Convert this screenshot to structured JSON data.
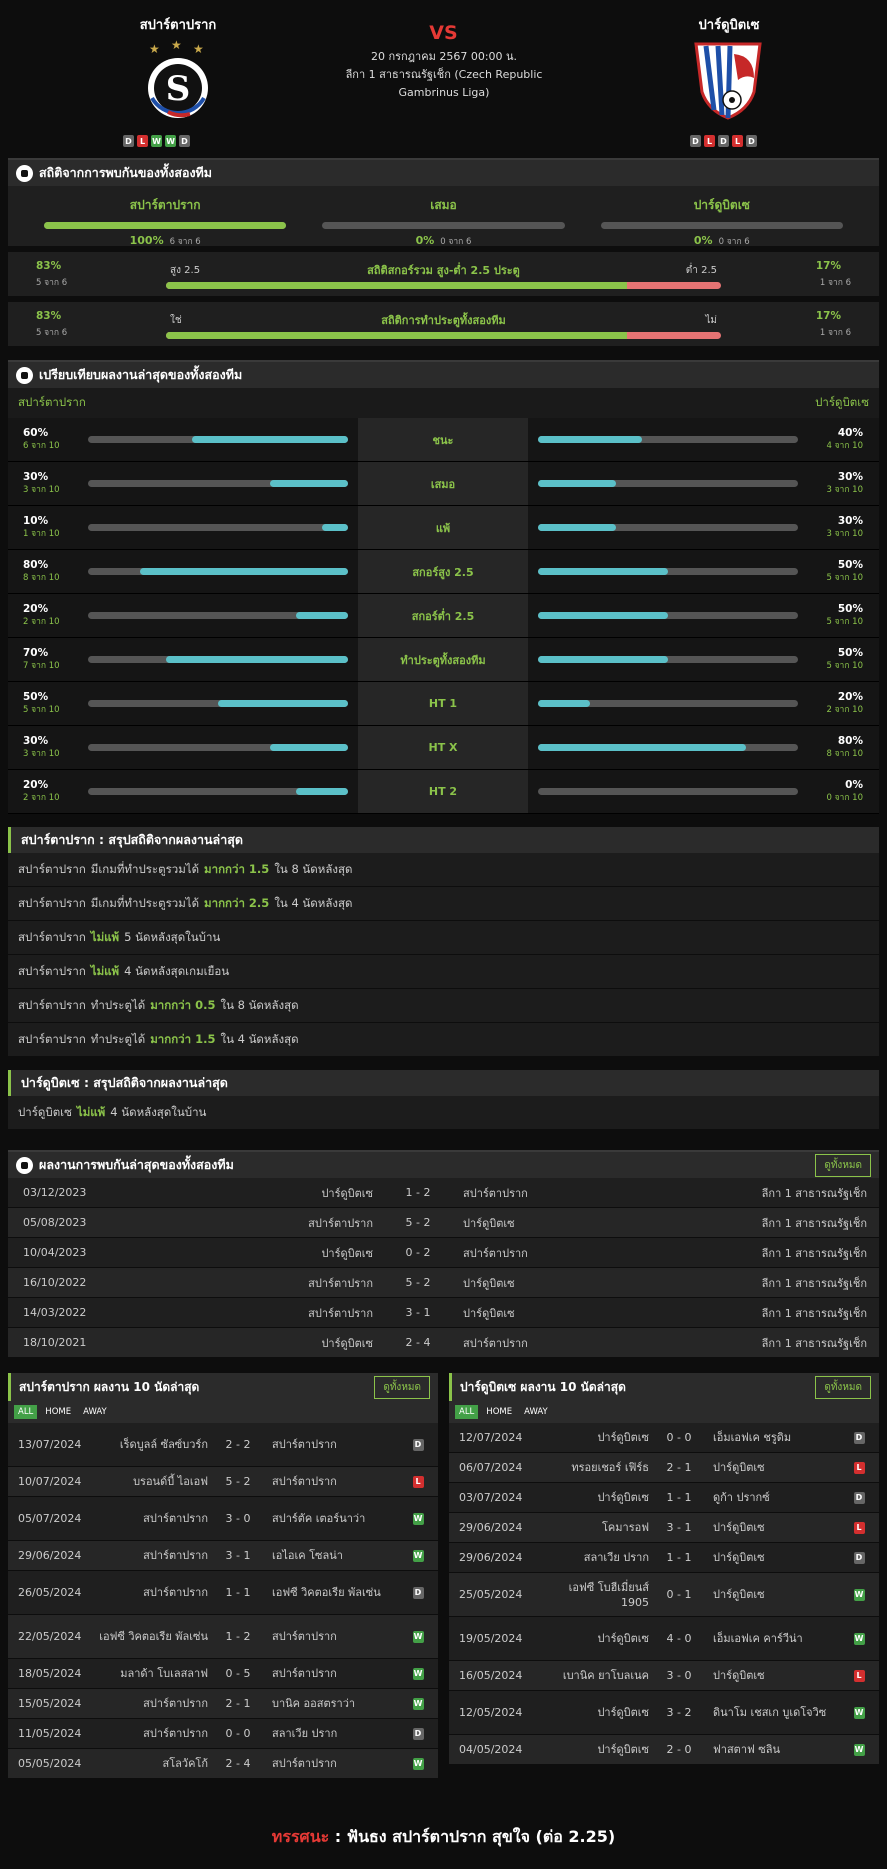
{
  "home_team": "สปาร์ตาปราก",
  "away_team": "ปาร์ดูบิตเซ",
  "vs": "VS",
  "match_date": "20 กรกฎาคม 2567 00:00 น.",
  "league": "ลีกา 1 สาธารณรัฐเช็ก (Czech Republic Gambrinus Liga)",
  "home_form": [
    "D",
    "L",
    "W",
    "W",
    "D"
  ],
  "away_form": [
    "D",
    "L",
    "D",
    "L",
    "D"
  ],
  "h2h": {
    "title": "สถิติจากการพบกันของทั้งสองทีม",
    "home": {
      "name": "สปาร์ตาปราก",
      "pct": "100%",
      "of": "6 จาก 6",
      "fill": 1.0
    },
    "draw": {
      "name": "เสมอ",
      "pct": "0%",
      "of": "0 จาก 6",
      "fill": 0.0
    },
    "away": {
      "name": "ปาร์ดูบิตเซ",
      "pct": "0%",
      "of": "0 จาก 6",
      "fill": 0.0
    },
    "ou": {
      "lp": "83%",
      "lo": "5 จาก 6",
      "ll": "สูง 2.5",
      "center": "สถิติสกอร์รวม สูง-ต่ำ 2.5 ประตู",
      "rl": "ต่ำ 2.5",
      "rp": "17%",
      "ro": "1 จาก 6",
      "fill": 0.83
    },
    "btts": {
      "lp": "83%",
      "lo": "5 จาก 6",
      "ll": "ใช่",
      "center": "สถิติการทำประตูทั้งสองทีม",
      "rl": "ไม่",
      "rp": "17%",
      "ro": "1 จาก 6",
      "fill": 0.83
    }
  },
  "compare": {
    "title": "เปรียบเทียบผลงานล่าสุดของทั้งสองทีม",
    "home": "สปาร์ตาปราก",
    "away": "ปาร์ดูบิตเซ",
    "rows": [
      {
        "label": "ชนะ",
        "hp": "60%",
        "ho": "6 จาก 10",
        "hv": 0.6,
        "ap": "40%",
        "ao": "4 จาก 10",
        "av": 0.4
      },
      {
        "label": "เสมอ",
        "hp": "30%",
        "ho": "3 จาก 10",
        "hv": 0.3,
        "ap": "30%",
        "ao": "3 จาก 10",
        "av": 0.3
      },
      {
        "label": "แพ้",
        "hp": "10%",
        "ho": "1 จาก 10",
        "hv": 0.1,
        "ap": "30%",
        "ao": "3 จาก 10",
        "av": 0.3
      },
      {
        "label": "สกอร์สูง 2.5",
        "hp": "80%",
        "ho": "8 จาก 10",
        "hv": 0.8,
        "ap": "50%",
        "ao": "5 จาก 10",
        "av": 0.5
      },
      {
        "label": "สกอร์ต่ำ 2.5",
        "hp": "20%",
        "ho": "2 จาก 10",
        "hv": 0.2,
        "ap": "50%",
        "ao": "5 จาก 10",
        "av": 0.5
      },
      {
        "label": "ทำประตูทั้งสองทีม",
        "hp": "70%",
        "ho": "7 จาก 10",
        "hv": 0.7,
        "ap": "50%",
        "ao": "5 จาก 10",
        "av": 0.5
      },
      {
        "label": "HT 1",
        "hp": "50%",
        "ho": "5 จาก 10",
        "hv": 0.5,
        "ap": "20%",
        "ao": "2 จาก 10",
        "av": 0.2
      },
      {
        "label": "HT X",
        "hp": "30%",
        "ho": "3 จาก 10",
        "hv": 0.3,
        "ap": "80%",
        "ao": "8 จาก 10",
        "av": 0.8
      },
      {
        "label": "HT 2",
        "hp": "20%",
        "ho": "2 จาก 10",
        "hv": 0.2,
        "ap": "0%",
        "ao": "0 จาก 10",
        "av": 0.0
      }
    ]
  },
  "home_summary": {
    "title": "สปาร์ตาปราก : สรุปสถิติจากผลงานล่าสุด",
    "rows": [
      [
        "สปาร์ตาปราก",
        "มีเกมที่ทำประตูรวมได้",
        "มากกว่า 1.5",
        "ใน 8 นัดหลังสุด"
      ],
      [
        "สปาร์ตาปราก",
        "มีเกมที่ทำประตูรวมได้",
        "มากกว่า 2.5",
        "ใน 4 นัดหลังสุด"
      ],
      [
        "สปาร์ตาปราก",
        "",
        "ไม่แพ้",
        "5 นัดหลังสุดในบ้าน"
      ],
      [
        "สปาร์ตาปราก",
        "",
        "ไม่แพ้",
        "4 นัดหลังสุดเกมเยือน"
      ],
      [
        "สปาร์ตาปราก",
        "ทำประตูได้",
        "มากกว่า 0.5",
        "ใน 8 นัดหลังสุด"
      ],
      [
        "สปาร์ตาปราก",
        "ทำประตูได้",
        "มากกว่า 1.5",
        "ใน 4 นัดหลังสุด"
      ]
    ]
  },
  "away_summary": {
    "title": "ปาร์ดูบิตเซ : สรุปสถิติจากผลงานล่าสุด",
    "rows": [
      [
        "ปาร์ดูบิตเซ",
        "",
        "ไม่แพ้",
        "4 นัดหลังสุดในบ้าน"
      ]
    ]
  },
  "h2h_list": {
    "title": "ผลงานการพบกันล่าสุดของทั้งสองทีม",
    "view_all": "ดูทั้งหมด",
    "rows": [
      [
        "03/12/2023",
        "ปาร์ดูบิตเซ",
        "1 - 2",
        "สปาร์ตาปราก",
        "ลีกา 1 สาธารณรัฐเช็ก"
      ],
      [
        "05/08/2023",
        "สปาร์ตาปราก",
        "5 - 2",
        "ปาร์ดูบิตเซ",
        "ลีกา 1 สาธารณรัฐเช็ก"
      ],
      [
        "10/04/2023",
        "ปาร์ดูบิตเซ",
        "0 - 2",
        "สปาร์ตาปราก",
        "ลีกา 1 สาธารณรัฐเช็ก"
      ],
      [
        "16/10/2022",
        "สปาร์ตาปราก",
        "5 - 2",
        "ปาร์ดูบิตเซ",
        "ลีกา 1 สาธารณรัฐเช็ก"
      ],
      [
        "14/03/2022",
        "สปาร์ตาปราก",
        "3 - 1",
        "ปาร์ดูบิตเซ",
        "ลีกา 1 สาธารณรัฐเช็ก"
      ],
      [
        "18/10/2021",
        "ปาร์ดูบิตเซ",
        "2 - 4",
        "สปาร์ตาปราก",
        "ลีกา 1 สาธารณรัฐเช็ก"
      ]
    ]
  },
  "filters": [
    "ALL",
    "HOME",
    "AWAY"
  ],
  "home_last": {
    "title": "สปาร์ตาปราก ผลงาน 10 นัดล่าสุด",
    "view_all": "ดูทั้งหมด",
    "rows": [
      [
        "13/07/2024",
        "เร็ดบูลล์ ซัลซ์บวร์ก",
        "2 - 2",
        "สปาร์ตาปราก",
        "D"
      ],
      [
        "10/07/2024",
        "บรอนด์บี้ ไอเอฟ",
        "5 - 2",
        "สปาร์ตาปราก",
        "L"
      ],
      [
        "05/07/2024",
        "สปาร์ตาปราก",
        "3 - 0",
        "สปาร์ตัค เตอร์นาว่า",
        "W"
      ],
      [
        "29/06/2024",
        "สปาร์ตาปราก",
        "3 - 1",
        "เอไอเค โซลน่า",
        "W"
      ],
      [
        "26/05/2024",
        "สปาร์ตาปราก",
        "1 - 1",
        "เอฟซี วิคตอเรีย พัลเซ่น",
        "D"
      ],
      [
        "22/05/2024",
        "เอฟซี วิคตอเรีย พัลเซ่น",
        "1 - 2",
        "สปาร์ตาปราก",
        "W"
      ],
      [
        "18/05/2024",
        "มลาด้า โบเลสลาฟ",
        "0 - 5",
        "สปาร์ตาปราก",
        "W"
      ],
      [
        "15/05/2024",
        "สปาร์ตาปราก",
        "2 - 1",
        "บานิค ออสตราว่า",
        "W"
      ],
      [
        "11/05/2024",
        "สปาร์ตาปราก",
        "0 - 0",
        "สลาเวีย ปราก",
        "D"
      ],
      [
        "05/05/2024",
        "สโลวัคโก้",
        "2 - 4",
        "สปาร์ตาปราก",
        "W"
      ]
    ]
  },
  "away_last": {
    "title": "ปาร์ดูบิตเซ ผลงาน 10 นัดล่าสุด",
    "view_all": "ดูทั้งหมด",
    "rows": [
      [
        "12/07/2024",
        "ปาร์ดูบิตเซ",
        "0 - 0",
        "เอ็มเอฟเค ชรูดิม",
        "D"
      ],
      [
        "06/07/2024",
        "ทรอยเชอร์ เฟิร์ธ",
        "2 - 1",
        "ปาร์ดูบิตเซ",
        "L"
      ],
      [
        "03/07/2024",
        "ปาร์ดูบิตเซ",
        "1 - 1",
        "ดูก้า ปรากซ์",
        "D"
      ],
      [
        "29/06/2024",
        "โคมารอฟ",
        "3 - 1",
        "ปาร์ดูบิตเซ",
        "L"
      ],
      [
        "29/06/2024",
        "สลาเวีย ปราก",
        "1 - 1",
        "ปาร์ดูบิตเซ",
        "D"
      ],
      [
        "25/05/2024",
        "เอฟซี โบฮีเมี่ยนส์ 1905",
        "0 - 1",
        "ปาร์ดูบิตเซ",
        "W"
      ],
      [
        "19/05/2024",
        "ปาร์ดูบิตเซ",
        "4 - 0",
        "เอ็มเอฟเค คาร์วีน่า",
        "W"
      ],
      [
        "16/05/2024",
        "เบานิค ยาโบลเนค",
        "3 - 0",
        "ปาร์ดูบิตเซ",
        "L"
      ],
      [
        "12/05/2024",
        "ปาร์ดูบิตเซ",
        "3 - 2",
        "ดินาโม เชสเก บูเดโจวิซ",
        "W"
      ],
      [
        "04/05/2024",
        "ปาร์ดูบิตเซ",
        "2 - 0",
        "ฟาสตาฟ ซลิน",
        "W"
      ]
    ]
  },
  "tip": {
    "label": "ทรรศนะ",
    "sep": " : ",
    "text": "ฟันธง สปาร์ตาปราก สุขใจ (ต่อ 2.25)"
  },
  "colors": {
    "accent": "#8bc34a",
    "red": "#e53935",
    "bar_fill": "#5bc0c8"
  }
}
